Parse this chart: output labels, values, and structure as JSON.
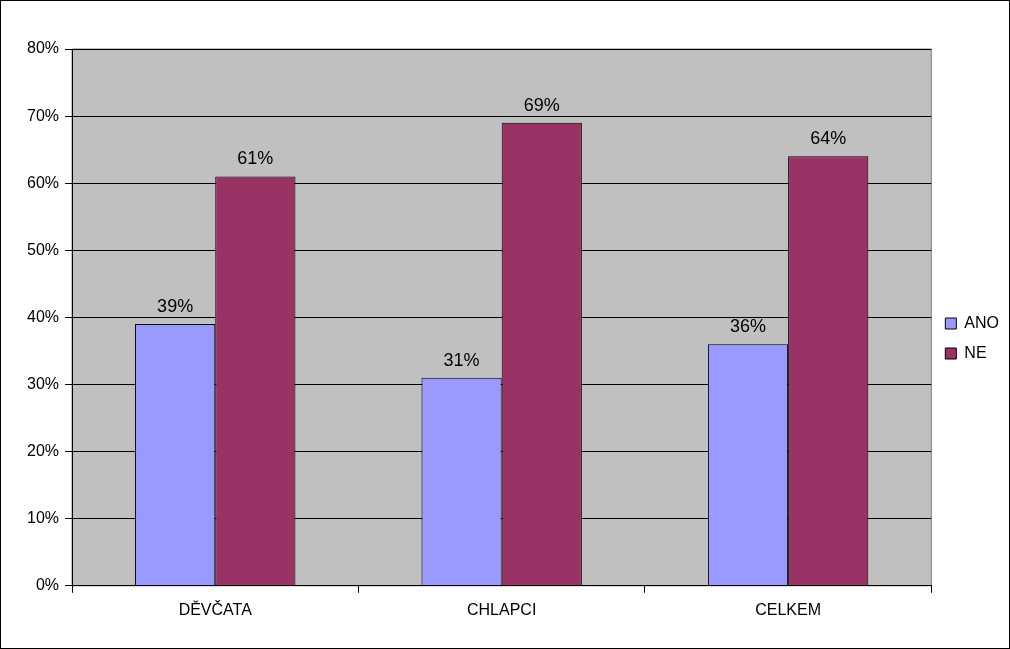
{
  "chart_data": {
    "type": "bar",
    "categories": [
      "DĚVČATA",
      "CHLAPCI",
      "CELKEM"
    ],
    "series": [
      {
        "name": "ANO",
        "color": "#9999ff",
        "values": [
          39,
          31,
          36
        ],
        "value_labels": [
          "39%",
          "31%",
          "36%"
        ]
      },
      {
        "name": "NE",
        "color": "#993366",
        "values": [
          61,
          69,
          64
        ],
        "value_labels": [
          "61%",
          "69%",
          "64%"
        ]
      }
    ],
    "ylim": [
      0,
      80
    ],
    "yticks": [
      {
        "value": 0,
        "label": "0%"
      },
      {
        "value": 10,
        "label": "10%"
      },
      {
        "value": 20,
        "label": "20%"
      },
      {
        "value": 30,
        "label": "30%"
      },
      {
        "value": 40,
        "label": "40%"
      },
      {
        "value": 50,
        "label": "50%"
      },
      {
        "value": 60,
        "label": "60%"
      },
      {
        "value": 70,
        "label": "70%"
      },
      {
        "value": 80,
        "label": "80%"
      }
    ],
    "grid": "y",
    "legend": "right"
  }
}
